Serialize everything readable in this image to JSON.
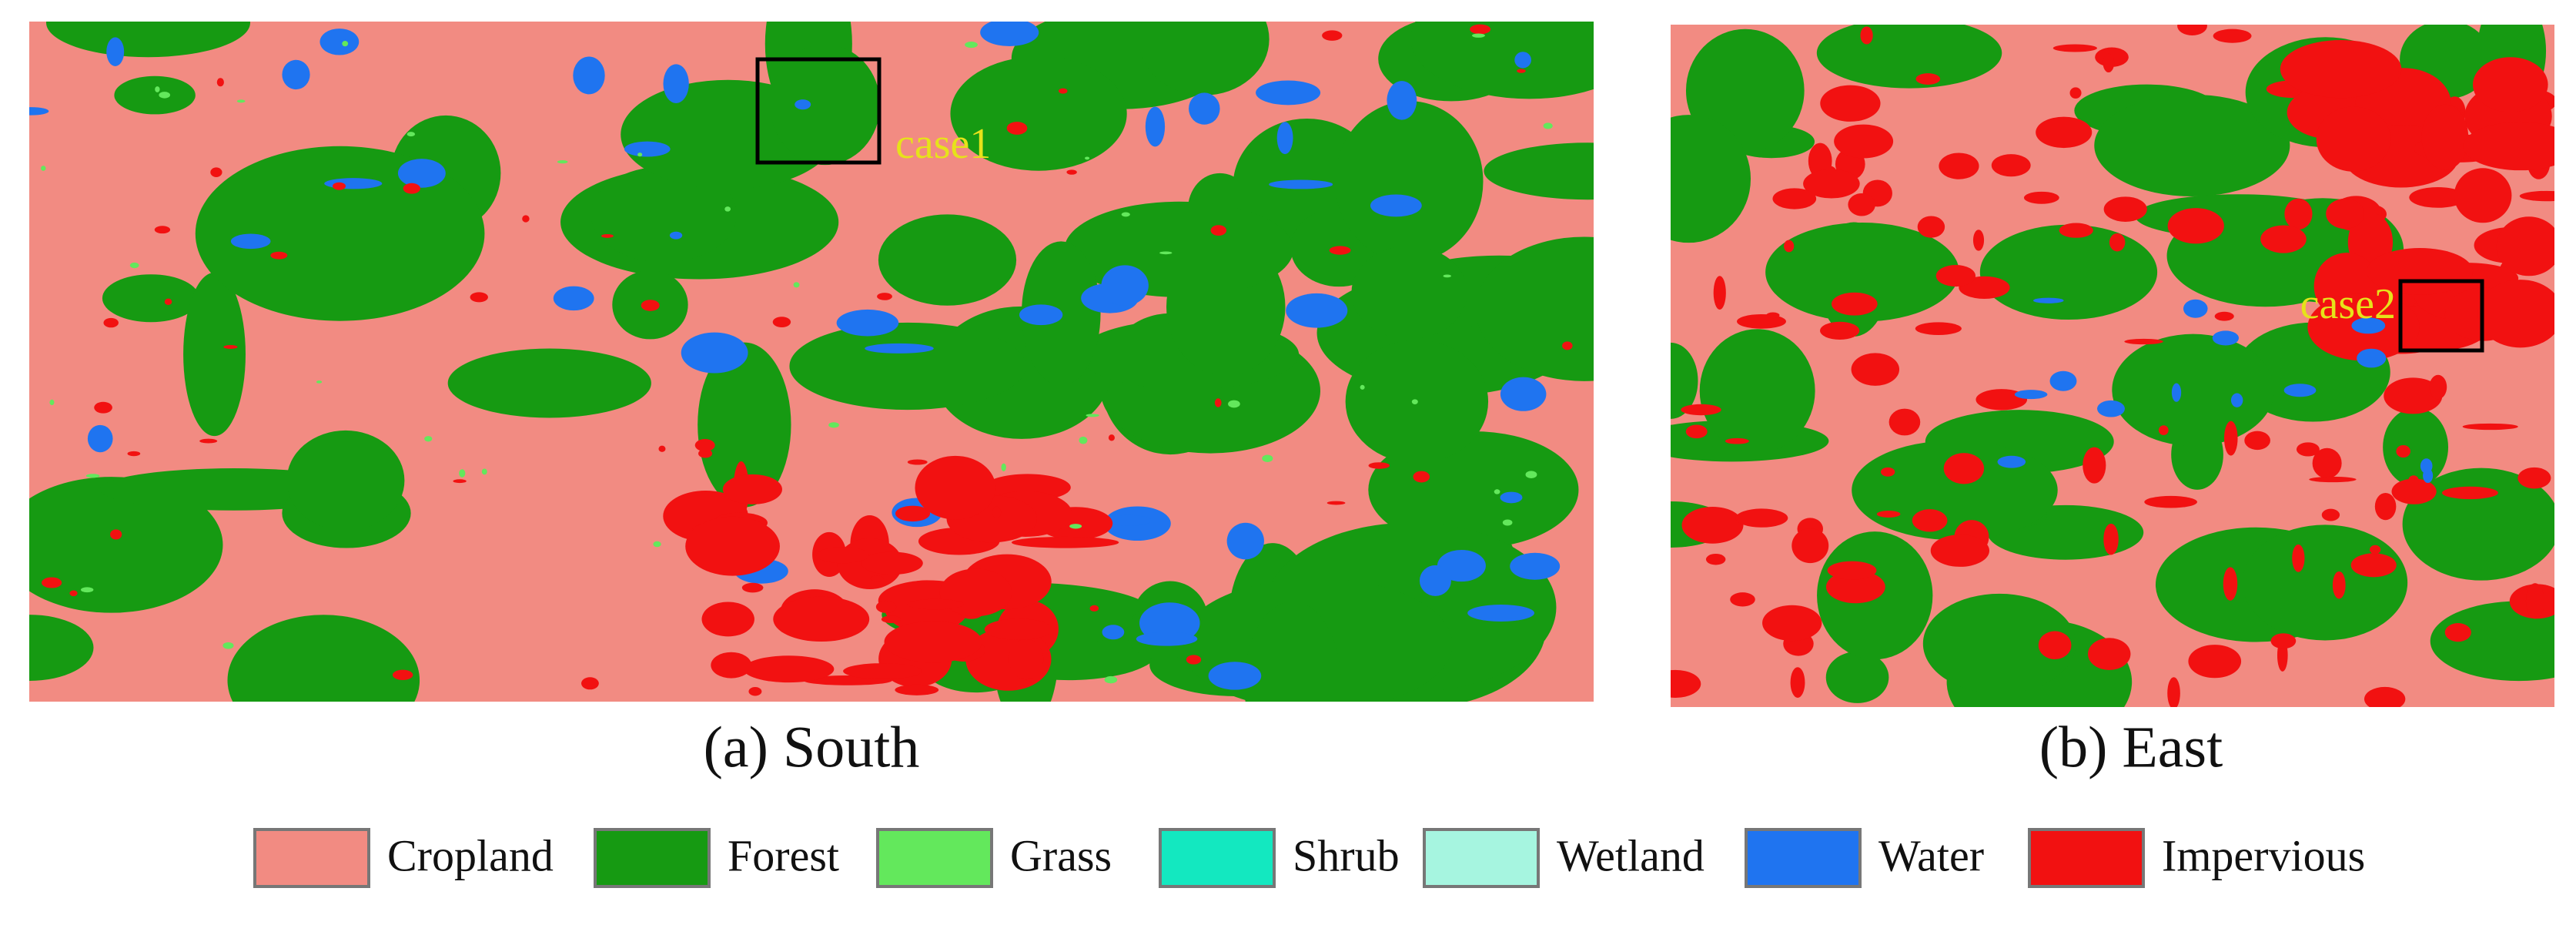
{
  "panels": [
    {
      "caption": "(a) South",
      "case_label": "case1"
    },
    {
      "caption": "(b) East",
      "case_label": "case2"
    }
  ],
  "legend": [
    {
      "label": "Cropland",
      "color": "#f28b82"
    },
    {
      "label": "Forest",
      "color": "#169a12"
    },
    {
      "label": "Grass",
      "color": "#63e85c"
    },
    {
      "label": "Shrub",
      "color": "#13e8c0"
    },
    {
      "label": "Wetland",
      "color": "#a6f5e0"
    },
    {
      "label": "Water",
      "color": "#1f74f0"
    },
    {
      "label": "Impervious",
      "color": "#f21111"
    }
  ]
}
